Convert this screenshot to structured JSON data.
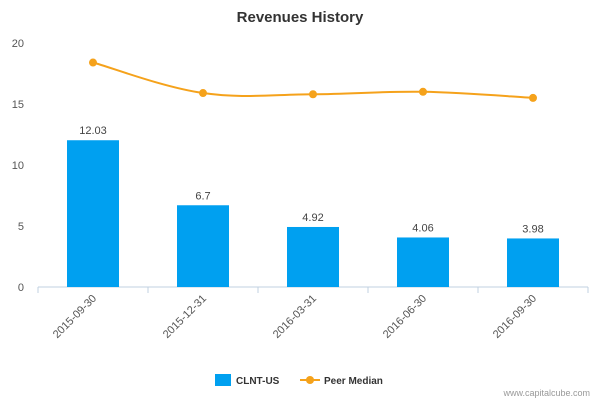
{
  "chart_data": {
    "type": "bar",
    "title": "Revenues History",
    "categories": [
      "2015-09-30",
      "2015-12-31",
      "2016-03-31",
      "2016-06-30",
      "2016-09-30"
    ],
    "series": [
      {
        "name": "CLNT-US",
        "type": "bar",
        "values": [
          12.03,
          6.7,
          4.92,
          4.06,
          3.98
        ],
        "color": "#00a0f0",
        "data_labels": [
          "12.03",
          "6.7",
          "4.92",
          "4.06",
          "3.98"
        ]
      },
      {
        "name": "Peer Median",
        "type": "line",
        "values": [
          18.4,
          15.9,
          15.8,
          16.0,
          15.5
        ],
        "color": "#f5a21b"
      }
    ],
    "ylim": [
      0,
      20
    ],
    "yticks": [
      0,
      5,
      10,
      15,
      20
    ],
    "grid": false,
    "legend": "bottom-center",
    "xlabel": "",
    "ylabel": ""
  },
  "credit": "www.capitalcube.com"
}
